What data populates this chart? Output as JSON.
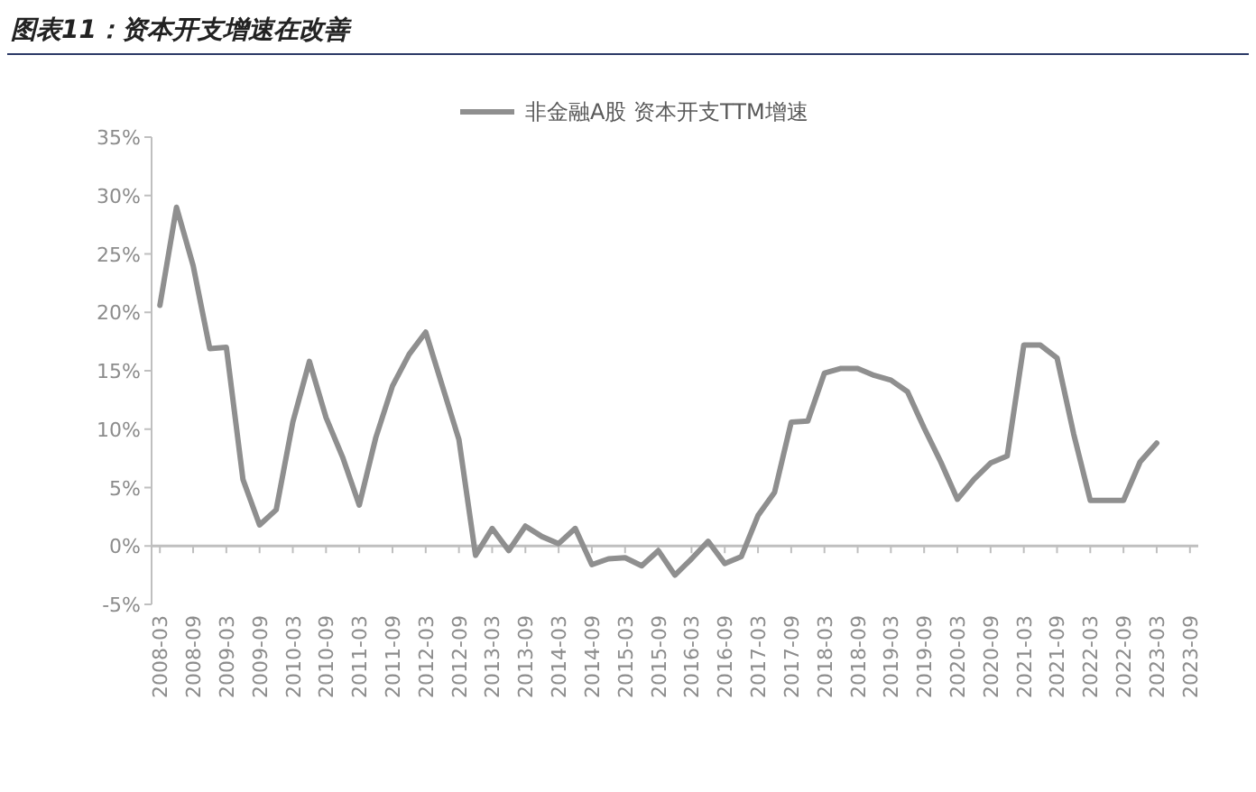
{
  "chart_data": {
    "type": "line",
    "title": "图表11：资本开支增速在改善",
    "categories": [
      "2008-03",
      null,
      "2008-09",
      null,
      "2009-03",
      null,
      "2009-09",
      null,
      "2010-03",
      null,
      "2010-09",
      null,
      "2011-03",
      null,
      "2011-09",
      null,
      "2012-03",
      null,
      "2012-09",
      null,
      "2013-03",
      null,
      "2013-09",
      null,
      "2014-03",
      null,
      "2014-09",
      null,
      "2015-03",
      null,
      "2015-09",
      null,
      "2016-03",
      null,
      "2016-09",
      null,
      "2017-03",
      null,
      "2017-09",
      null,
      "2018-03",
      null,
      "2018-09",
      null,
      "2019-03",
      null,
      "2019-09",
      null,
      "2020-03",
      null,
      "2020-09",
      null,
      "2021-03",
      null,
      "2021-09",
      null,
      "2022-03",
      null,
      "2022-09",
      null,
      "2023-03",
      null,
      "2023-09"
    ],
    "series": [
      {
        "name": "非金融A股 资本开支TTM增速",
        "color": "#8f8f8f",
        "values": [
          20.6,
          29.0,
          24.0,
          16.9,
          17.0,
          5.7,
          1.8,
          3.1,
          10.6,
          15.8,
          11.0,
          7.6,
          3.5,
          9.3,
          13.7,
          16.4,
          18.3,
          13.7,
          9.1,
          -0.8,
          1.5,
          -0.4,
          1.7,
          0.8,
          0.2,
          1.5,
          -1.6,
          -1.1,
          -1.0,
          -1.7,
          -0.4,
          -2.5,
          -1.1,
          0.4,
          -1.5,
          -0.9,
          2.6,
          4.6,
          10.6,
          10.7,
          14.8,
          15.2,
          15.2,
          14.6,
          14.2,
          13.2,
          10.1,
          7.2,
          4.0,
          5.7,
          7.1,
          7.7,
          17.2,
          17.2,
          16.1,
          9.6,
          3.9,
          3.9,
          3.9,
          7.2,
          8.8,
          null,
          null
        ]
      }
    ],
    "ylim": [
      -5,
      35
    ],
    "yticks": [
      {
        "value": -5,
        "label": "-5%"
      },
      {
        "value": 0,
        "label": "0%"
      },
      {
        "value": 5,
        "label": "5%"
      },
      {
        "value": 10,
        "label": "10%"
      },
      {
        "value": 15,
        "label": "15%"
      },
      {
        "value": 20,
        "label": "20%"
      },
      {
        "value": 25,
        "label": "25%"
      },
      {
        "value": 30,
        "label": "30%"
      },
      {
        "value": 35,
        "label": "35%"
      }
    ],
    "legend": "top",
    "marker": "none",
    "line_style": "solid"
  }
}
